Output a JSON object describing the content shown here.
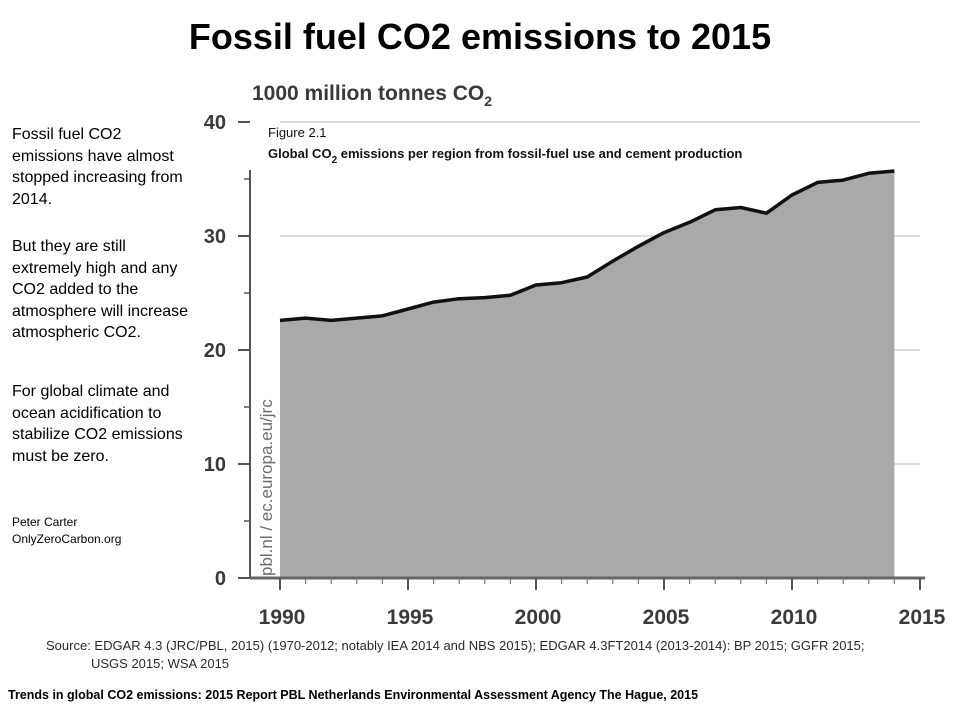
{
  "title": "Fossil fuel CO2 emissions to 2015",
  "side_text": {
    "para1": "Fossil fuel CO2 emissions have almost stopped increasing from 2014.",
    "para2": "But they are still extremely high and any CO2 added to the atmosphere will increase atmospheric CO2.",
    "para3": "For global climate and ocean acidification to stabilize CO2 emissions must be zero."
  },
  "credit": {
    "name": "Peter Carter",
    "site": "OnlyZeroCarbon.org"
  },
  "chart_data": {
    "type": "area",
    "ylabel": "1000 million tonnes CO",
    "ylabel_subscript": "2",
    "figure_label": "Figure 2.1",
    "figure_title_part1": "Global CO",
    "figure_title_sub": "2",
    "figure_title_part2": " emissions per region from fossil-fuel use and cement production",
    "watermark": "pbl.nl / ec.europa.eu/jrc",
    "xlim": [
      1990,
      2015
    ],
    "ylim": [
      0,
      40
    ],
    "x_ticks": [
      1990,
      1995,
      2000,
      2005,
      2010,
      2015
    ],
    "y_ticks": [
      0,
      10,
      20,
      30,
      40
    ],
    "grid": "horizontal",
    "x": [
      1990,
      1991,
      1992,
      1993,
      1994,
      1995,
      1996,
      1997,
      1998,
      1999,
      2000,
      2001,
      2002,
      2003,
      2004,
      2005,
      2006,
      2007,
      2008,
      2009,
      2010,
      2011,
      2012,
      2013,
      2014
    ],
    "values": [
      22.6,
      22.8,
      22.6,
      22.8,
      23.0,
      23.6,
      24.2,
      24.5,
      24.6,
      24.8,
      25.7,
      25.9,
      26.4,
      27.8,
      29.1,
      30.3,
      31.2,
      32.3,
      32.5,
      32.0,
      33.6,
      34.7,
      34.9,
      35.5,
      35.7
    ],
    "fill_color": "#a9a9a9",
    "line_color": "#111111"
  },
  "source": {
    "line1": "Source: EDGAR 4.3 (JRC/PBL, 2015) (1970-2012; notably IEA 2014 and NBS 2015); EDGAR 4.3FT2014 (2013-2014): BP 2015; GGFR 2015;",
    "line2": "USGS 2015; WSA 2015"
  },
  "footer": "Trends in global CO2 emissions: 2015 Report PBL Netherlands Environmental Assessment Agency The Hague, 2015"
}
